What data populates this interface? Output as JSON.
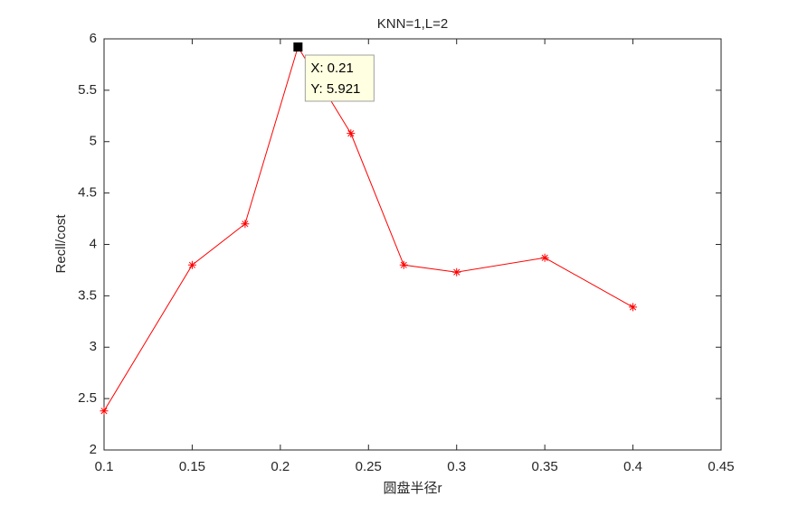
{
  "chart_data": {
    "type": "line",
    "title": "KNN=1,L=2",
    "x_label": "圆盘半径r",
    "y_label": "Recll/cost",
    "x": [
      0.1,
      0.15,
      0.18,
      0.21,
      0.24,
      0.27,
      0.3,
      0.35,
      0.4
    ],
    "series": [
      {
        "color": "#ff0000",
        "marker": "*",
        "values": [
          2.38,
          3.8,
          4.2,
          5.921,
          5.08,
          3.8,
          3.73,
          3.87,
          3.39
        ]
      }
    ],
    "xlim": [
      0.1,
      0.45
    ],
    "xticks": [
      0.1,
      0.15,
      0.2,
      0.25,
      0.3,
      0.35,
      0.4,
      0.45
    ],
    "ylim": [
      2,
      6
    ],
    "yticks": [
      2,
      2.5,
      3,
      3.5,
      4,
      4.5,
      5,
      5.5,
      6
    ],
    "datatip": {
      "x": 0.21,
      "y": 5.921,
      "text": [
        "X: 0.21",
        "Y: 5.921"
      ]
    }
  }
}
